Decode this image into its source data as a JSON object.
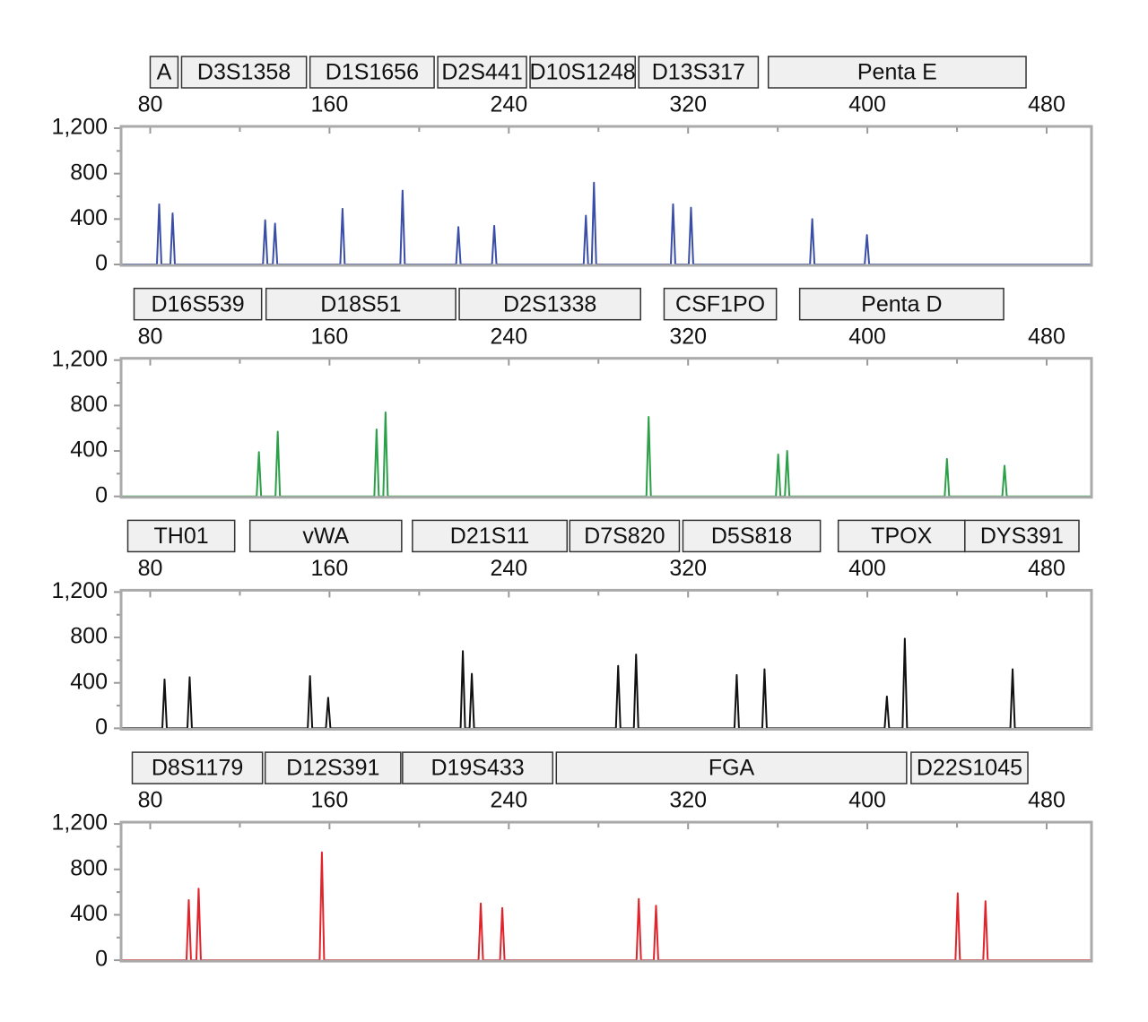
{
  "chart_data": [
    {
      "type": "line",
      "color": "#3a4ea8",
      "xlim": [
        67,
        500
      ],
      "ylim": [
        0,
        1200
      ],
      "xticks": [
        80,
        160,
        240,
        320,
        400,
        480
      ],
      "xminorticks": [
        120,
        200,
        280,
        360,
        440
      ],
      "yticks": [
        0,
        400,
        800,
        {
          "value": 1200,
          "label": "1,200"
        }
      ],
      "yminorticks": [
        200,
        600,
        1000
      ],
      "markers": [
        {
          "label": "A",
          "start": 80.0,
          "end": 92.4
        },
        {
          "label": "D3S1358",
          "start": 94.0,
          "end": 149.7
        },
        {
          "label": "D1S1656",
          "start": 151.3,
          "end": 206.7
        },
        {
          "label": "D2S441",
          "start": 208.3,
          "end": 247.9
        },
        {
          "label": "D10S1248",
          "start": 249.5,
          "end": 296.4
        },
        {
          "label": "D13S317",
          "start": 298.0,
          "end": 351.3
        },
        {
          "label": "Penta E",
          "start": 355.8,
          "end": 470.8
        }
      ],
      "x": [
        67,
        83,
        84,
        85,
        89,
        90,
        91,
        130.3,
        131.3,
        132.3,
        134.7,
        135.7,
        136.7,
        164.8,
        165.8,
        166.8,
        191.6,
        192.6,
        193.6,
        216.5,
        217.5,
        218.5,
        232.5,
        233.5,
        234.5,
        273.4,
        274.4,
        275.4,
        277,
        278,
        279,
        312.3,
        313.3,
        314.3,
        320.3,
        321.3,
        322.3,
        374.4,
        375.4,
        376.4,
        398.8,
        399.8,
        400.8,
        500
      ],
      "values": [
        0,
        0,
        530,
        0,
        0,
        450,
        0,
        0,
        390,
        0,
        0,
        360,
        0,
        0,
        490,
        0,
        0,
        650,
        0,
        0,
        330,
        0,
        0,
        340,
        0,
        0,
        430,
        0,
        0,
        720,
        0,
        0,
        530,
        0,
        0,
        500,
        0,
        0,
        400,
        0,
        0,
        260,
        0,
        0
      ]
    },
    {
      "type": "line",
      "color": "#2ca048",
      "xlim": [
        67,
        500
      ],
      "ylim": [
        0,
        1200
      ],
      "xticks": [
        80,
        160,
        240,
        320,
        400,
        480
      ],
      "xminorticks": [
        120,
        200,
        280,
        360,
        440
      ],
      "yticks": [
        0,
        400,
        800,
        {
          "value": 1200,
          "label": "1,200"
        }
      ],
      "yminorticks": [
        200,
        600,
        1000
      ],
      "markers": [
        {
          "label": "D16S539",
          "start": 72.8,
          "end": 129.7
        },
        {
          "label": "D18S51",
          "start": 131.7,
          "end": 216.3
        },
        {
          "label": "D2S1338",
          "start": 217.9,
          "end": 298.8
        },
        {
          "label": "CSF1PO",
          "start": 309.3,
          "end": 359.4
        },
        {
          "label": "Penta D",
          "start": 369.8,
          "end": 460.8
        }
      ],
      "x": [
        67,
        127.5,
        128.5,
        129.5,
        135.9,
        136.9,
        137.9,
        180,
        181,
        182,
        184,
        185,
        186,
        301.4,
        302.4,
        303.4,
        359.2,
        360.2,
        361.2,
        363.2,
        364.2,
        365.2,
        434.5,
        435.5,
        436.5,
        460.2,
        461.2,
        462.2,
        500
      ],
      "values": [
        0,
        0,
        390,
        0,
        0,
        570,
        0,
        0,
        590,
        0,
        0,
        740,
        0,
        0,
        700,
        0,
        0,
        370,
        0,
        0,
        400,
        0,
        0,
        330,
        0,
        0,
        270,
        0,
        0
      ]
    },
    {
      "type": "line",
      "color": "#111111",
      "xlim": [
        67,
        500
      ],
      "ylim": [
        0,
        1200
      ],
      "xticks": [
        80,
        160,
        240,
        320,
        400,
        480
      ],
      "xminorticks": [
        120,
        200,
        280,
        360,
        440
      ],
      "yticks": [
        0,
        400,
        800,
        {
          "value": 1200,
          "label": "1,200"
        }
      ],
      "yminorticks": [
        200,
        600,
        1000
      ],
      "markers": [
        {
          "label": "TH01",
          "start": 70.0,
          "end": 117.7
        },
        {
          "label": "vWA",
          "start": 124.5,
          "end": 192.2
        },
        {
          "label": "D21S11",
          "start": 197.0,
          "end": 266.0
        },
        {
          "label": "D7S820",
          "start": 267.2,
          "end": 316.1
        },
        {
          "label": "D5S818",
          "start": 317.7,
          "end": 379.0
        },
        {
          "label": "TPOX",
          "start": 387.0,
          "end": 443.5
        },
        {
          "label": "DYS391",
          "start": 443.5,
          "end": 494.4
        }
      ],
      "x": [
        67,
        85.4,
        86.4,
        87.4,
        96.6,
        97.6,
        98.6,
        150.3,
        151.3,
        152.3,
        158.4,
        159.4,
        160.4,
        218.5,
        219.5,
        220.5,
        222.5,
        223.5,
        224.5,
        287.8,
        288.8,
        289.8,
        295.8,
        296.8,
        297.8,
        340.7,
        341.7,
        342.7,
        353.1,
        354.1,
        355.1,
        407.7,
        408.7,
        409.7,
        415.7,
        416.7,
        417.7,
        463.8,
        464.8,
        465.8,
        500
      ],
      "values": [
        0,
        0,
        430,
        0,
        0,
        450,
        0,
        0,
        460,
        0,
        0,
        270,
        0,
        0,
        680,
        0,
        0,
        480,
        0,
        0,
        550,
        0,
        0,
        650,
        0,
        0,
        470,
        0,
        0,
        520,
        0,
        0,
        280,
        0,
        0,
        790,
        0,
        0,
        520,
        0,
        0
      ]
    },
    {
      "type": "line",
      "color": "#e0242c",
      "xlim": [
        67,
        500
      ],
      "ylim": [
        0,
        1200
      ],
      "xticks": [
        80,
        160,
        240,
        320,
        400,
        480
      ],
      "xminorticks": [
        120,
        200,
        280,
        360,
        440
      ],
      "yticks": [
        0,
        400,
        800,
        {
          "value": 1200,
          "label": "1,200"
        }
      ],
      "yminorticks": [
        200,
        600,
        1000
      ],
      "markers": [
        {
          "label": "D8S1179",
          "start": 72.0,
          "end": 130.1
        },
        {
          "label": "D12S391",
          "start": 131.3,
          "end": 191.8
        },
        {
          "label": "D19S433",
          "start": 192.6,
          "end": 259.6
        },
        {
          "label": "FGA",
          "start": 261.2,
          "end": 417.5
        },
        {
          "label": "D22S1045",
          "start": 419.5,
          "end": 471.6
        }
      ],
      "x": [
        67,
        96.2,
        97.2,
        98.2,
        100.6,
        101.6,
        102.6,
        155.6,
        156.6,
        157.6,
        226.5,
        227.5,
        228.5,
        236.1,
        237.1,
        238.1,
        297,
        298,
        299,
        304.7,
        305.7,
        306.7,
        439.3,
        440.3,
        441.3,
        451.7,
        452.7,
        453.7,
        500
      ],
      "values": [
        0,
        0,
        530,
        0,
        0,
        630,
        0,
        0,
        950,
        0,
        0,
        500,
        0,
        0,
        460,
        0,
        0,
        540,
        0,
        0,
        480,
        0,
        0,
        590,
        0,
        0,
        520,
        0,
        0
      ]
    }
  ]
}
